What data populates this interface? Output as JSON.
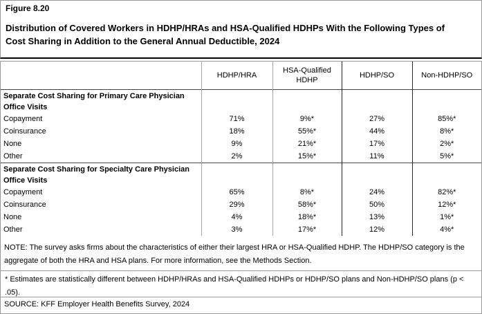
{
  "figure_label": "Figure 8.20",
  "title": "Distribution of Covered Workers in HDHP/HRAs and HSA-Qualified HDHPs With the Following Types of Cost Sharing in Addition to the General Annual Deductible, 2024",
  "table": {
    "columns": [
      "HDHP/HRA",
      "HSA-Qualified HDHP",
      "HDHP/SO",
      "Non-HDHP/SO"
    ],
    "sections": [
      {
        "header": "Separate Cost Sharing for Primary Care Physician Office Visits",
        "rows": [
          {
            "label": "Copayment",
            "values": [
              "71%",
              "9%*",
              "27%",
              "85%*"
            ]
          },
          {
            "label": "Coinsurance",
            "values": [
              "18%",
              "55%*",
              "44%",
              "8%*"
            ]
          },
          {
            "label": "None",
            "values": [
              "9%",
              "21%*",
              "17%",
              "2%*"
            ]
          },
          {
            "label": "Other",
            "values": [
              "2%",
              "15%*",
              "11%",
              "5%*"
            ]
          }
        ]
      },
      {
        "header": "Separate Cost Sharing for Specialty Care Physician Office Visits",
        "rows": [
          {
            "label": "Copayment",
            "values": [
              "65%",
              "8%*",
              "24%",
              "82%*"
            ]
          },
          {
            "label": "Coinsurance",
            "values": [
              "29%",
              "58%*",
              "50%",
              "12%*"
            ]
          },
          {
            "label": "None",
            "values": [
              "4%",
              "18%*",
              "13%",
              "1%*"
            ]
          },
          {
            "label": "Other",
            "values": [
              "3%",
              "17%*",
              "12%",
              "4%*"
            ]
          }
        ]
      }
    ]
  },
  "note": "NOTE: The survey asks firms about the characteristics of either their largest HRA or HSA-Qualified HDHP. The HDHP/SO category is the aggregate of both the HRA and HSA plans. For more information, see the Methods Section.",
  "footnote": "* Estimates are statistically different between HDHP/HRAs and HSA-Qualified HDHPs or HDHP/SO plans and Non-HDHP/SO plans (p < .05).",
  "source": "SOURCE: KFF Employer Health Benefits Survey, 2024",
  "colors": {
    "border_light": "#999999",
    "separator_light": "#a6a6a6",
    "separator_dark": "#262626",
    "title_rule": "#000000",
    "text": "#000000"
  }
}
